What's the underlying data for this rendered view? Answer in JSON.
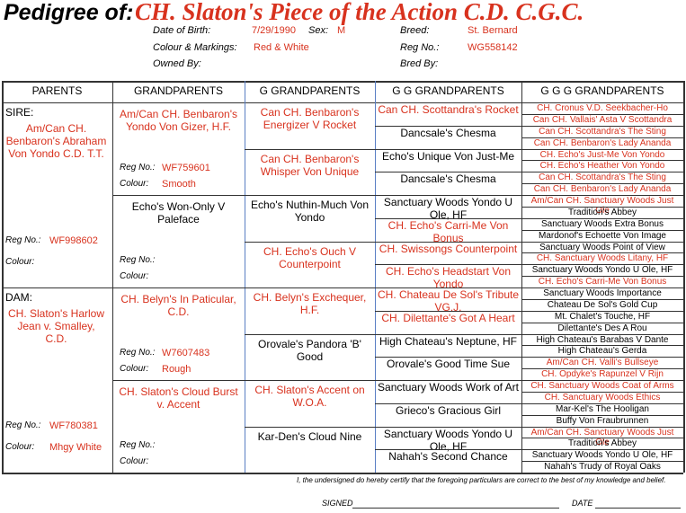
{
  "header": {
    "title_label": "Pedigree of:",
    "name": "CH.  Slaton's Piece of the Action C.D. C.G.C.",
    "name_color": "#d8321e",
    "fields": [
      {
        "label": "Date of Birth:",
        "value": "7/29/1990"
      },
      {
        "label": "Sex:",
        "value": "M"
      },
      {
        "label": "Breed:",
        "value": "St. Bernard"
      },
      {
        "label": "Colour & Markings:",
        "value": "Red & White"
      },
      {
        "label": "Reg No.:",
        "value": "WG558142"
      },
      {
        "label": "Owned By:"
      },
      {
        "label": "Bred By:"
      }
    ]
  },
  "table": {
    "headers": [
      "PARENTS",
      "GRANDPARENTS",
      "G GRANDPARENTS",
      "G G GRANDPARENTS",
      "G G G GRANDPARENTS"
    ],
    "parents": [
      {
        "label": "SIRE:",
        "name": "Am/Can CH. Benbaron's Abraham Von Yondo C.D. T.T.",
        "color": "#d8321e",
        "reg_label": "Reg No.:",
        "reg_no": "WF998602",
        "colour_label": "Colour:"
      },
      {
        "label": "DAM:",
        "name": "CH.  Slaton's Harlow Jean v. Smalley, C.D.",
        "color": "#d8321e",
        "reg_label": "Reg No.:",
        "reg_no": "WF780381",
        "colour_label": "Colour:",
        "colour": "Mhgy White"
      }
    ],
    "grandparents": [
      {
        "name": "Am/Can CH. Benbaron's Yondo Von Gizer, H.F.",
        "color": "#d8321e",
        "reg_label": "Reg No.:",
        "reg_no": "WF759601",
        "colour_label": "Colour:",
        "colour": "Smooth"
      },
      {
        "name": "Echo's Won-Only V Paleface",
        "color": "#000000",
        "reg_label": "Reg No.:",
        "colour_label": "Colour:"
      },
      {
        "name": "CH.  Belyn's In Paticular, C.D.",
        "color": "#d8321e",
        "reg_label": "Reg No.:",
        "reg_no": "W7607483",
        "colour_label": "Colour:",
        "colour": "Rough"
      },
      {
        "name": "CH.  Slaton's Cloud Burst v. Accent",
        "color": "#d8321e",
        "reg_label": "Reg No.:",
        "colour_label": "Colour:"
      }
    ],
    "great_grandparents": [
      {
        "name": "Can CH. Benbaron's Energizer V Rocket",
        "color": "#d8321e"
      },
      {
        "name": "Can CH. Benbaron's Whisper Von Unique",
        "color": "#d8321e"
      },
      {
        "name": "Echo's Nuthin-Much Von Yondo",
        "color": "#000000"
      },
      {
        "name": "CH.  Echo's Ouch V Counterpoint",
        "color": "#d8321e"
      },
      {
        "name": "CH.  Belyn's Exchequer, H.F.",
        "color": "#d8321e"
      },
      {
        "name": "Orovale's Pandora 'B' Good",
        "color": "#000000"
      },
      {
        "name": "CH.  Slaton's Accent on W.O.A.",
        "color": "#d8321e"
      },
      {
        "name": "Kar-Den's Cloud Nine",
        "color": "#000000"
      }
    ],
    "gg_grandparents": [
      {
        "name": "Can CH. Scottandra's Rocket",
        "color": "#d8321e"
      },
      {
        "name": "Dancsale's Chesma",
        "color": "#000000"
      },
      {
        "name": "Echo's Unique Von Just-Me",
        "color": "#000000"
      },
      {
        "name": "Dancsale's Chesma",
        "color": "#000000"
      },
      {
        "name": "Sanctuary Woods Yondo U Ole, HF",
        "color": "#000000"
      },
      {
        "name": "CH.  Echo's Carri-Me Von Bonus",
        "color": "#d8321e"
      },
      {
        "name": "CH.  Swissongs Counterpoint",
        "color": "#d8321e"
      },
      {
        "name": "CH.  Echo's Headstart Von Yondo",
        "color": "#d8321e"
      },
      {
        "name": "CH.  Chateau De Sol's Tribute VG.J.",
        "color": "#d8321e"
      },
      {
        "name": "CH.  Dilettante's Got A Heart",
        "color": "#d8321e"
      },
      {
        "name": "High Chateau's Neptune, HF",
        "color": "#000000"
      },
      {
        "name": "Orovale's Good Time Sue",
        "color": "#000000"
      },
      {
        "name": "Sanctuary Woods Work of Art",
        "color": "#000000"
      },
      {
        "name": "Grieco's Gracious Girl",
        "color": "#000000"
      },
      {
        "name": "Sanctuary Woods Yondo U Ole, HF",
        "color": "#000000"
      },
      {
        "name": "Nahah's Second Chance",
        "color": "#000000"
      }
    ],
    "ggg_grandparents": [
      {
        "name": "CH.  Cronus V.D. Seekbacher-Ho",
        "color": "#d8321e"
      },
      {
        "name": "Can CH. Vallais' Asta V Scottandra",
        "color": "#d8321e"
      },
      {
        "name": "Can CH. Scottandra's The Sting",
        "color": "#d8321e"
      },
      {
        "name": "Can CH. Benbaron's Lady Ananda",
        "color": "#d8321e"
      },
      {
        "name": "CH.  Echo's Just-Me Von Yondo",
        "color": "#d8321e"
      },
      {
        "name": "CH.  Echo's Heather Von Yondo",
        "color": "#d8321e"
      },
      {
        "name": "Can CH. Scottandra's The Sting",
        "color": "#d8321e"
      },
      {
        "name": "Can CH. Benbaron's Lady Ananda",
        "color": "#d8321e"
      },
      {
        "name": "Am/Can CH. Sanctuary Woods Just Ole",
        "color": "#d8321e"
      },
      {
        "name": "Tradition's Abbey",
        "color": "#000000"
      },
      {
        "name": "Sanctuary Woods Extra Bonus",
        "color": "#000000"
      },
      {
        "name": "Mardonof's Echoette Von Image",
        "color": "#000000"
      },
      {
        "name": "Sanctuary Woods Point of View",
        "color": "#000000"
      },
      {
        "name": "CH.  Sanctuary Woods Litany, HF",
        "color": "#d8321e"
      },
      {
        "name": "Sanctuary Woods Yondo U Ole, HF",
        "color": "#000000"
      },
      {
        "name": "CH.  Echo's Carri-Me Von Bonus",
        "color": "#d8321e"
      },
      {
        "name": "Sanctuary Woods Importance",
        "color": "#000000"
      },
      {
        "name": "Chateau De Sol's Gold Cup",
        "color": "#000000"
      },
      {
        "name": "Mt. Chalet's Touche, HF",
        "color": "#000000"
      },
      {
        "name": "Dilettante's Des A Rou",
        "color": "#000000"
      },
      {
        "name": "High Chateau's Barabas V Dante",
        "color": "#000000"
      },
      {
        "name": "High Chateau's Gerda",
        "color": "#000000"
      },
      {
        "name": "Am/Can CH. Valli's Bullseye",
        "color": "#d8321e"
      },
      {
        "name": "CH.  Opdyke's Rapunzel V Rijn",
        "color": "#d8321e"
      },
      {
        "name": "CH.  Sanctuary Woods Coat of Arms",
        "color": "#d8321e"
      },
      {
        "name": "CH.  Sanctuary Woods Ethics",
        "color": "#d8321e"
      },
      {
        "name": "Mar-Kel's The Hooligan",
        "color": "#000000"
      },
      {
        "name": "Buffy Von Fraubrunnen",
        "color": "#000000"
      },
      {
        "name": "Am/Can CH. Sanctuary Woods Just Ole",
        "color": "#d8321e"
      },
      {
        "name": "Tradition's Abbey",
        "color": "#000000"
      },
      {
        "name": "Sanctuary Woods Yondo U Ole, HF",
        "color": "#000000"
      },
      {
        "name": "Nahah's Trudy of Royal Oaks",
        "color": "#000000"
      }
    ]
  },
  "footer": {
    "certification": "I, the undersigned do hereby certify that the foregoing    particulars are correct to the best of my knowledge and belief.",
    "signed_label": "SIGNED",
    "date_label": "DATE"
  }
}
